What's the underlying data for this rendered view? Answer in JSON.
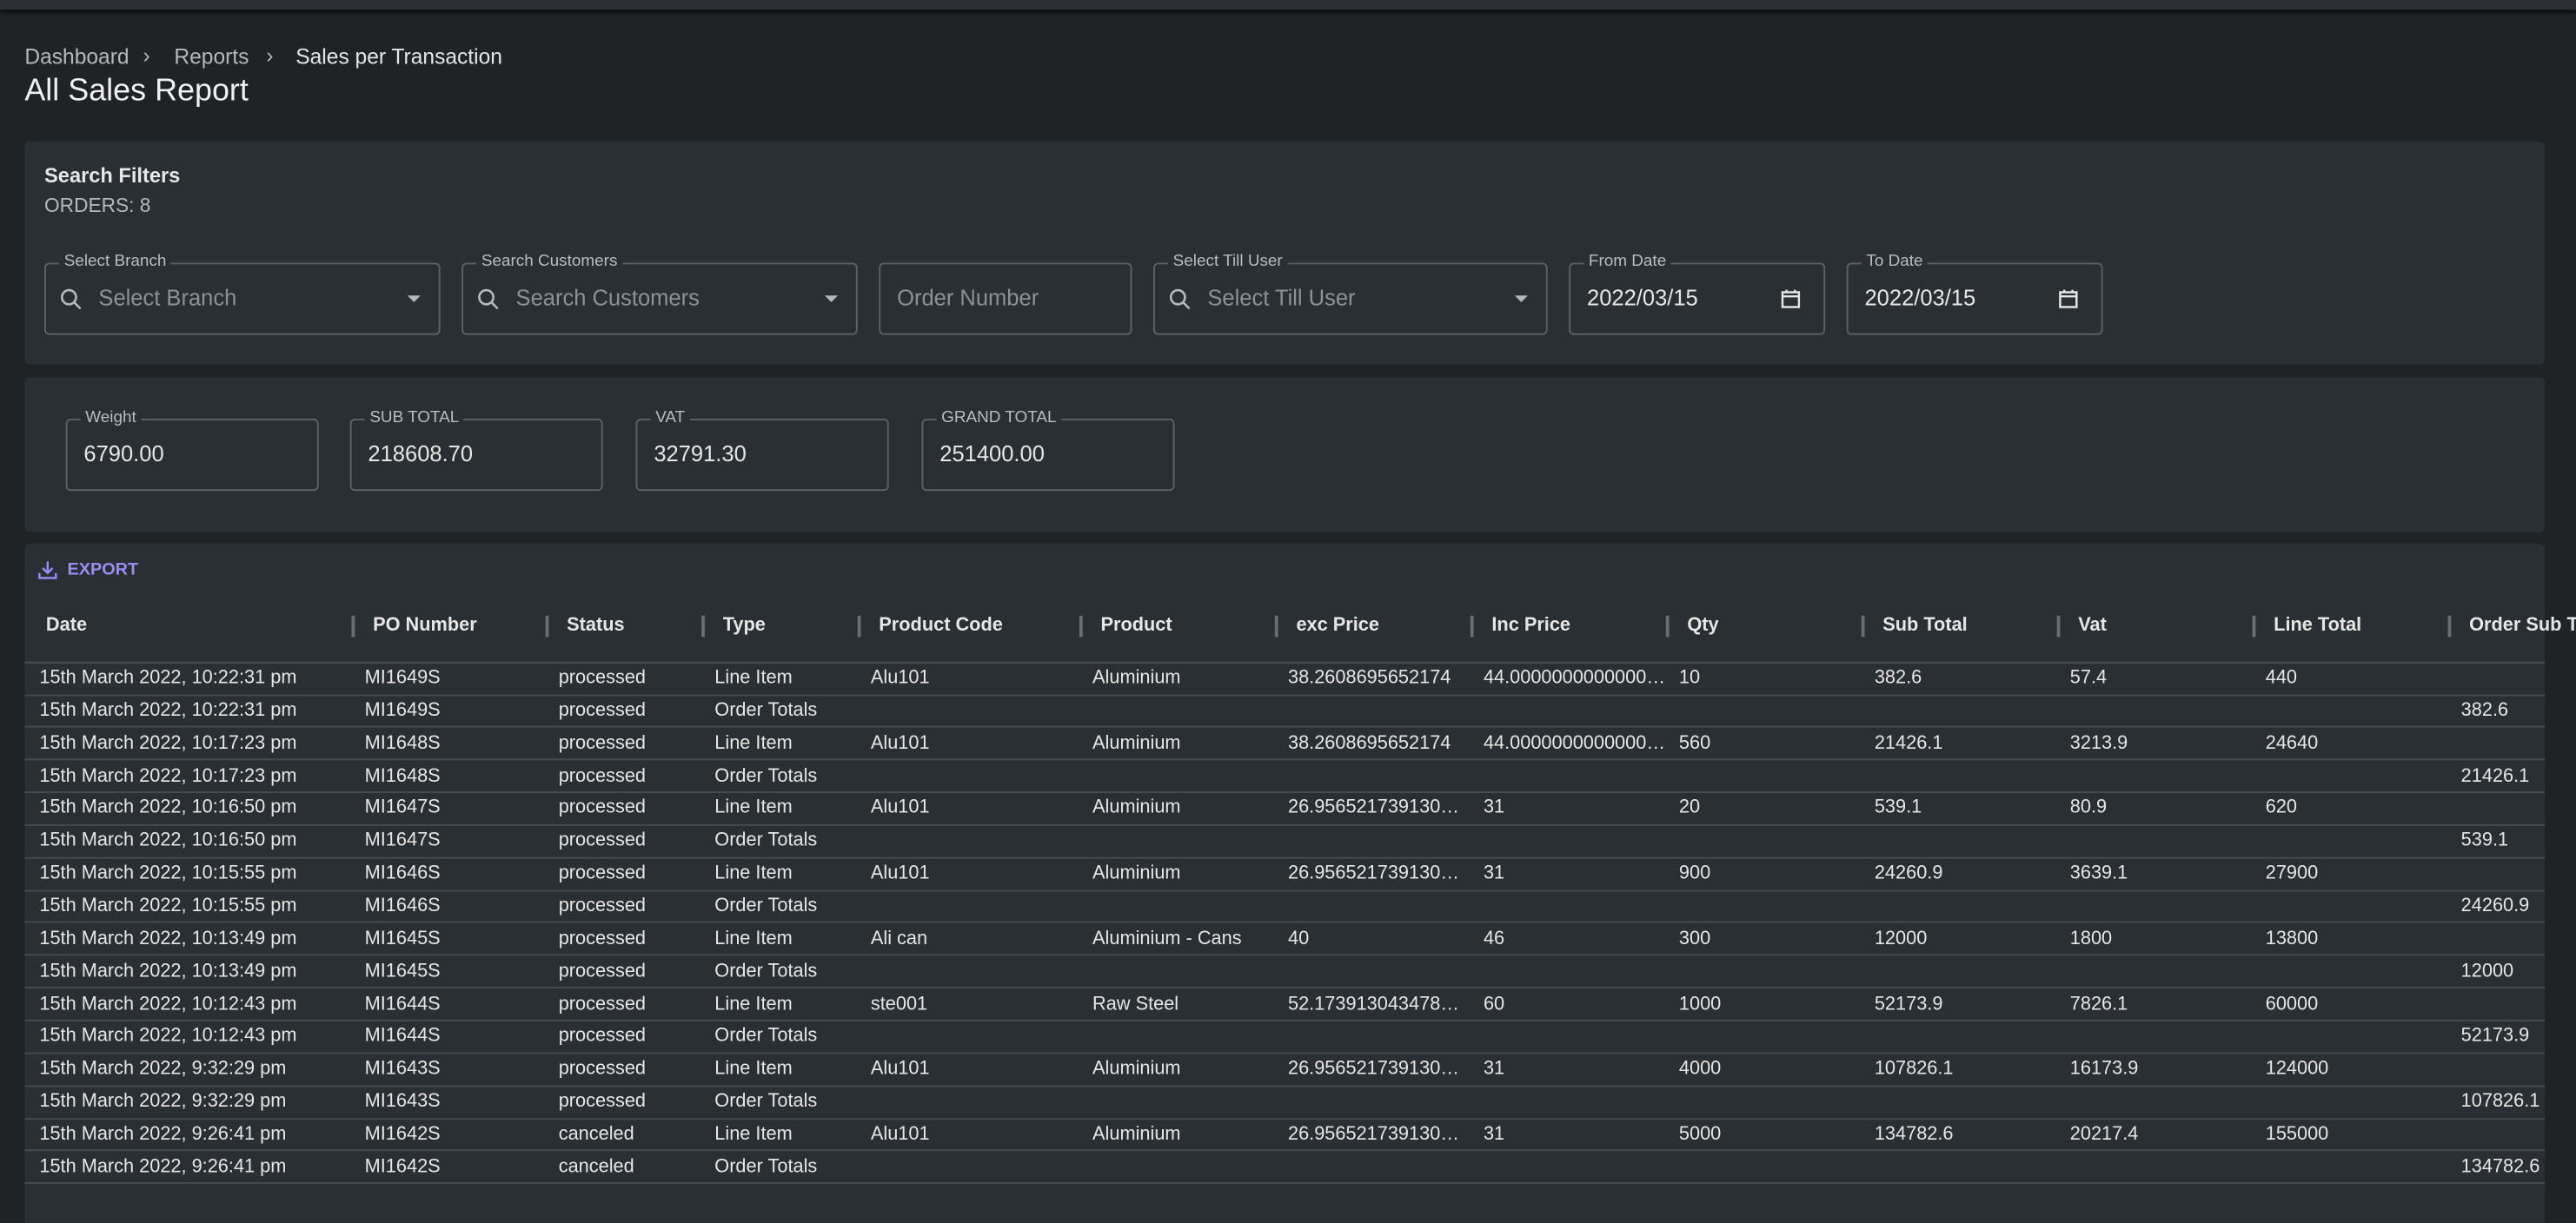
{
  "breadcrumb": [
    "Dashboard",
    "Reports",
    "Sales per Transaction"
  ],
  "header": {
    "title": "All Sales Report"
  },
  "filters": {
    "title": "Search Filters",
    "orders": "ORDERS: 8",
    "fields": [
      {
        "label": "Select Branch",
        "placeholder": "Select Branch"
      },
      {
        "label": "Search Customers",
        "placeholder": "Search Customers"
      },
      {
        "placeholder": "Order Number"
      },
      {
        "label": "Select Till User",
        "placeholder": "Select Till User"
      },
      {
        "label": "From Date",
        "value": "2022/03/15"
      },
      {
        "label": "To Date",
        "value": "2022/03/15"
      }
    ]
  },
  "totals": [
    {
      "label": "Weight",
      "value": "6790.00"
    },
    {
      "label": "SUB TOTAL",
      "value": "218608.70"
    },
    {
      "label": "VAT",
      "value": "32791.30"
    },
    {
      "label": "GRAND TOTAL",
      "value": "251400.00"
    }
  ],
  "table": {
    "export": "EXPORT",
    "columns": [
      "Date",
      "PO Number",
      "Status",
      "Type",
      "Product Code",
      "Product",
      "exc Price",
      "Inc Price",
      "Qty",
      "Sub Total",
      "Vat",
      "Line Total",
      "Order Sub Total"
    ],
    "rows": [
      [
        "15th March 2022, 10:22:31 pm",
        "MI1649S",
        "processed",
        "Line Item",
        "Alu101",
        "Aluminium",
        "38.2608695652174",
        "44.0000000000000…",
        "10",
        "382.6",
        "57.4",
        "440",
        null
      ],
      [
        "15th March 2022, 10:22:31 pm",
        "MI1649S",
        "processed",
        "Order Totals",
        null,
        null,
        null,
        null,
        null,
        null,
        null,
        null,
        "382.6"
      ],
      [
        "15th March 2022, 10:17:23 pm",
        "MI1648S",
        "processed",
        "Line Item",
        "Alu101",
        "Aluminium",
        "38.2608695652174",
        "44.0000000000000…",
        "560",
        "21426.1",
        "3213.9",
        "24640",
        null
      ],
      [
        "15th March 2022, 10:17:23 pm",
        "MI1648S",
        "processed",
        "Order Totals",
        null,
        null,
        null,
        null,
        null,
        null,
        null,
        null,
        "21426.1"
      ],
      [
        "15th March 2022, 10:16:50 pm",
        "MI1647S",
        "processed",
        "Line Item",
        "Alu101",
        "Aluminium",
        "26.956521739130…",
        "31",
        "20",
        "539.1",
        "80.9",
        "620",
        null
      ],
      [
        "15th March 2022, 10:16:50 pm",
        "MI1647S",
        "processed",
        "Order Totals",
        null,
        null,
        null,
        null,
        null,
        null,
        null,
        null,
        "539.1"
      ],
      [
        "15th March 2022, 10:15:55 pm",
        "MI1646S",
        "processed",
        "Line Item",
        "Alu101",
        "Aluminium",
        "26.956521739130…",
        "31",
        "900",
        "24260.9",
        "3639.1",
        "27900",
        null
      ],
      [
        "15th March 2022, 10:15:55 pm",
        "MI1646S",
        "processed",
        "Order Totals",
        null,
        null,
        null,
        null,
        null,
        null,
        null,
        null,
        "24260.9"
      ],
      [
        "15th March 2022, 10:13:49 pm",
        "MI1645S",
        "processed",
        "Line Item",
        "Ali can",
        "Aluminium - Cans",
        "40",
        "46",
        "300",
        "12000",
        "1800",
        "13800",
        null
      ],
      [
        "15th March 2022, 10:13:49 pm",
        "MI1645S",
        "processed",
        "Order Totals",
        null,
        null,
        null,
        null,
        null,
        null,
        null,
        null,
        "12000"
      ],
      [
        "15th March 2022, 10:12:43 pm",
        "MI1644S",
        "processed",
        "Line Item",
        "ste001",
        "Raw Steel",
        "52.173913043478…",
        "60",
        "1000",
        "52173.9",
        "7826.1",
        "60000",
        null
      ],
      [
        "15th March 2022, 10:12:43 pm",
        "MI1644S",
        "processed",
        "Order Totals",
        null,
        null,
        null,
        null,
        null,
        null,
        null,
        null,
        "52173.9"
      ],
      [
        "15th March 2022, 9:32:29 pm",
        "MI1643S",
        "processed",
        "Line Item",
        "Alu101",
        "Aluminium",
        "26.956521739130…",
        "31",
        "4000",
        "107826.1",
        "16173.9",
        "124000",
        null
      ],
      [
        "15th March 2022, 9:32:29 pm",
        "MI1643S",
        "processed",
        "Order Totals",
        null,
        null,
        null,
        null,
        null,
        null,
        null,
        null,
        "107826.1"
      ],
      [
        "15th March 2022, 9:26:41 pm",
        "MI1642S",
        "canceled",
        "Line Item",
        "Alu101",
        "Aluminium",
        "26.956521739130…",
        "31",
        "5000",
        "134782.6",
        "20217.4",
        "155000",
        null
      ],
      [
        "15th March 2022, 9:26:41 pm",
        "MI1642S",
        "canceled",
        "Order Totals",
        null,
        null,
        null,
        null,
        null,
        null,
        null,
        null,
        "134782.6"
      ]
    ]
  }
}
